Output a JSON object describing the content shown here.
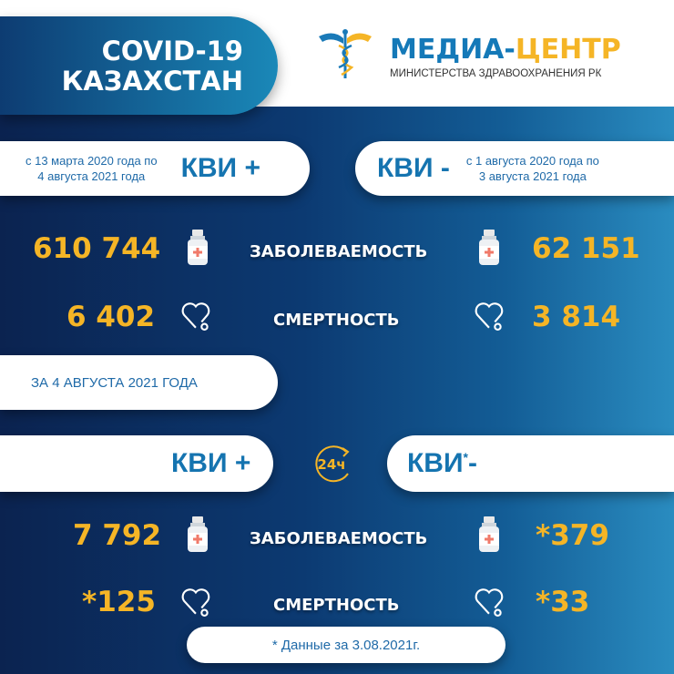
{
  "header": {
    "title_line1": "COVID-19",
    "title_line2": "КАЗАХСТАН",
    "logo_part1": "МЕДИА-",
    "logo_part2": "ЦЕНТР",
    "logo_subtitle": "МИНИСТЕРСТВА ЗДРАВООХРАНЕНИЯ РК"
  },
  "total": {
    "positive": {
      "label": "КВИ +",
      "period_line1": "с 13 марта 2020 года по",
      "period_line2": "4 августа 2021 года",
      "cases": "610 744",
      "deaths": "6 402"
    },
    "negative": {
      "label": "КВИ -",
      "period_line1": "с 1 августа 2020 года по",
      "period_line2": "3 августа 2021 года",
      "cases": "62 151",
      "deaths": "3 814"
    }
  },
  "labels": {
    "incidence": "ЗАБОЛЕВАЕМОСТЬ",
    "mortality": "СМЕРТНОСТЬ"
  },
  "daily": {
    "date_label": "ЗА 4 АВГУСТА 2021 ГОДА",
    "badge": "24ч",
    "positive": {
      "label": "КВИ +",
      "cases": "7 792",
      "deaths": "*125"
    },
    "negative": {
      "label": "КВИ",
      "asterisk": "*",
      "suffix": "-",
      "cases": "*379",
      "deaths": "*33"
    }
  },
  "footnote": "* Данные за 3.08.2021г.",
  "colors": {
    "accent": "#f5b526",
    "brand_blue": "#1574b0",
    "navy": "#0b2350"
  }
}
